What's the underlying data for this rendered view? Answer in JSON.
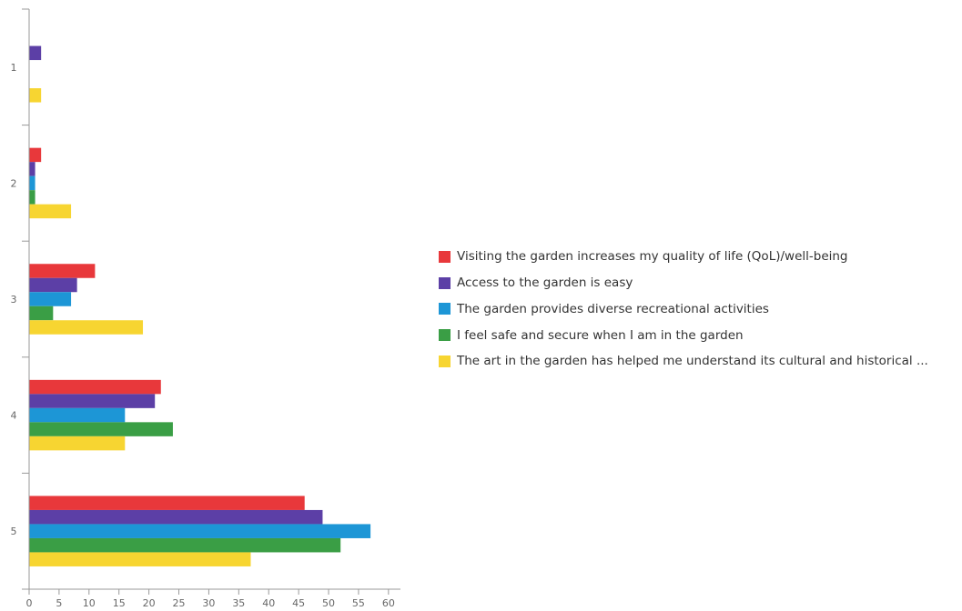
{
  "chart_data": {
    "type": "bar",
    "orientation": "horizontal",
    "categories": [
      "1",
      "2",
      "3",
      "4",
      "5"
    ],
    "series": [
      {
        "name": "Visiting the garden increases my quality of life (QoL)/well-being",
        "color": "#e8383b",
        "values": [
          0,
          2,
          11,
          22,
          46
        ]
      },
      {
        "name": "Access to the garden is easy",
        "color": "#5c3fa6",
        "values": [
          2,
          1,
          8,
          21,
          49
        ]
      },
      {
        "name": "The garden provides diverse recreational activities",
        "color": "#1d96d6",
        "values": [
          0,
          1,
          7,
          16,
          57
        ]
      },
      {
        "name": "I feel safe and secure when I am in the garden",
        "color": "#3a9e45",
        "values": [
          0,
          1,
          4,
          24,
          52
        ]
      },
      {
        "name": "The art in the garden has helped me understand its cultural and historical ...",
        "color": "#f7d531",
        "values": [
          2,
          7,
          19,
          16,
          37
        ]
      }
    ],
    "x_ticks": [
      "0",
      "5",
      "10",
      "15",
      "20",
      "25",
      "30",
      "35",
      "40",
      "45",
      "50",
      "55",
      "60"
    ],
    "xlim": [
      0,
      62
    ],
    "grid": false,
    "legend_position": "right"
  }
}
